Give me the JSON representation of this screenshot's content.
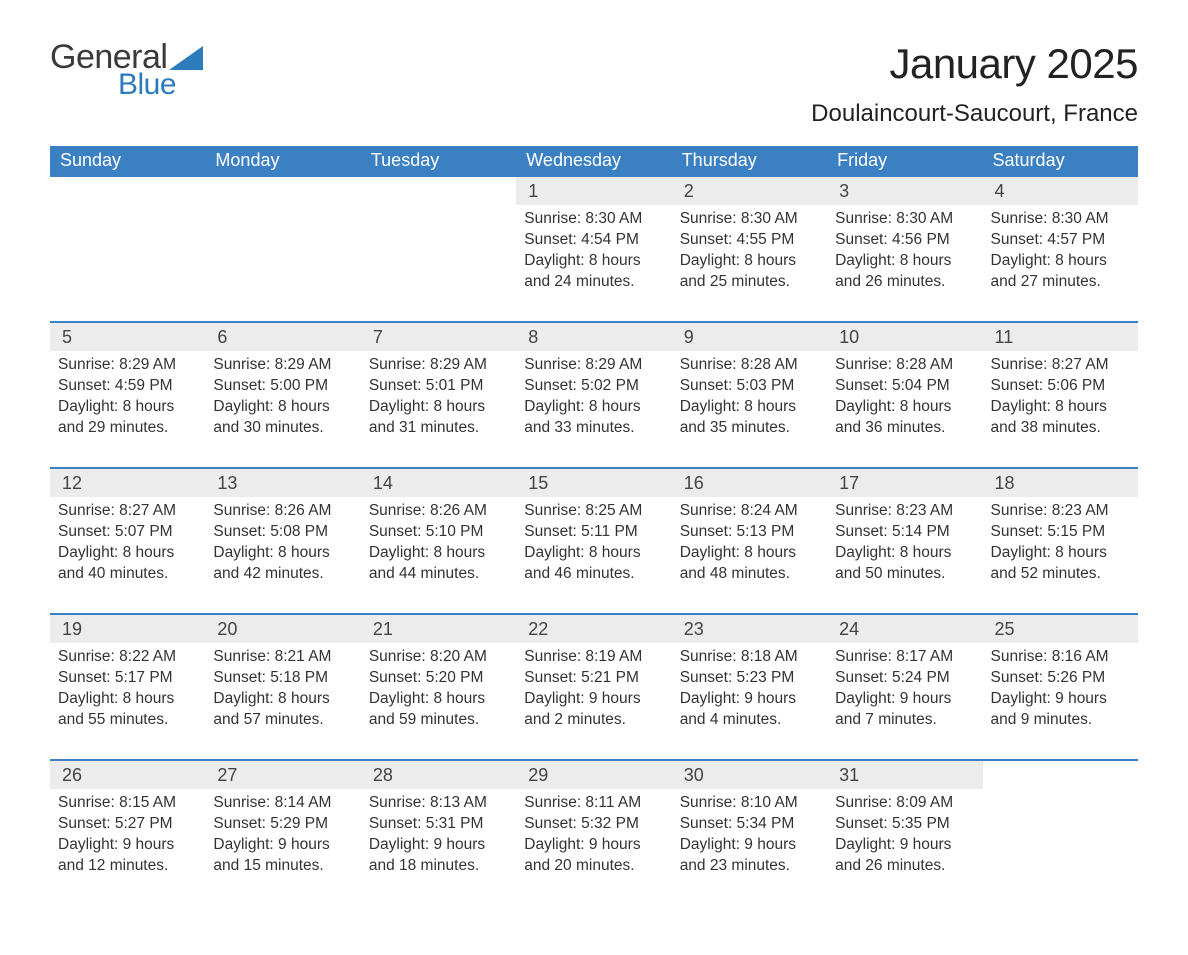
{
  "brand": {
    "part1": "General",
    "part2": "Blue",
    "color1": "#3a3a3a",
    "color2": "#2b7bbd"
  },
  "title": "January 2025",
  "location": "Doulaincourt-Saucourt, France",
  "colors": {
    "header_bg": "#3a80c3",
    "header_text": "#ffffff",
    "row_divider": "#3a80c3",
    "daynum_bg": "#ececec",
    "text": "#333333",
    "background": "#ffffff"
  },
  "fonts": {
    "title_size_pt": 32,
    "location_size_pt": 18,
    "header_size_pt": 14,
    "body_size_pt": 12
  },
  "layout": {
    "columns": 7,
    "rows": 5,
    "first_weekday_index": 3
  },
  "weekdays": [
    "Sunday",
    "Monday",
    "Tuesday",
    "Wednesday",
    "Thursday",
    "Friday",
    "Saturday"
  ],
  "weeks": [
    [
      null,
      null,
      null,
      {
        "day": "1",
        "sunrise": "Sunrise: 8:30 AM",
        "sunset": "Sunset: 4:54 PM",
        "daylight": "Daylight: 8 hours and 24 minutes."
      },
      {
        "day": "2",
        "sunrise": "Sunrise: 8:30 AM",
        "sunset": "Sunset: 4:55 PM",
        "daylight": "Daylight: 8 hours and 25 minutes."
      },
      {
        "day": "3",
        "sunrise": "Sunrise: 8:30 AM",
        "sunset": "Sunset: 4:56 PM",
        "daylight": "Daylight: 8 hours and 26 minutes."
      },
      {
        "day": "4",
        "sunrise": "Sunrise: 8:30 AM",
        "sunset": "Sunset: 4:57 PM",
        "daylight": "Daylight: 8 hours and 27 minutes."
      }
    ],
    [
      {
        "day": "5",
        "sunrise": "Sunrise: 8:29 AM",
        "sunset": "Sunset: 4:59 PM",
        "daylight": "Daylight: 8 hours and 29 minutes."
      },
      {
        "day": "6",
        "sunrise": "Sunrise: 8:29 AM",
        "sunset": "Sunset: 5:00 PM",
        "daylight": "Daylight: 8 hours and 30 minutes."
      },
      {
        "day": "7",
        "sunrise": "Sunrise: 8:29 AM",
        "sunset": "Sunset: 5:01 PM",
        "daylight": "Daylight: 8 hours and 31 minutes."
      },
      {
        "day": "8",
        "sunrise": "Sunrise: 8:29 AM",
        "sunset": "Sunset: 5:02 PM",
        "daylight": "Daylight: 8 hours and 33 minutes."
      },
      {
        "day": "9",
        "sunrise": "Sunrise: 8:28 AM",
        "sunset": "Sunset: 5:03 PM",
        "daylight": "Daylight: 8 hours and 35 minutes."
      },
      {
        "day": "10",
        "sunrise": "Sunrise: 8:28 AM",
        "sunset": "Sunset: 5:04 PM",
        "daylight": "Daylight: 8 hours and 36 minutes."
      },
      {
        "day": "11",
        "sunrise": "Sunrise: 8:27 AM",
        "sunset": "Sunset: 5:06 PM",
        "daylight": "Daylight: 8 hours and 38 minutes."
      }
    ],
    [
      {
        "day": "12",
        "sunrise": "Sunrise: 8:27 AM",
        "sunset": "Sunset: 5:07 PM",
        "daylight": "Daylight: 8 hours and 40 minutes."
      },
      {
        "day": "13",
        "sunrise": "Sunrise: 8:26 AM",
        "sunset": "Sunset: 5:08 PM",
        "daylight": "Daylight: 8 hours and 42 minutes."
      },
      {
        "day": "14",
        "sunrise": "Sunrise: 8:26 AM",
        "sunset": "Sunset: 5:10 PM",
        "daylight": "Daylight: 8 hours and 44 minutes."
      },
      {
        "day": "15",
        "sunrise": "Sunrise: 8:25 AM",
        "sunset": "Sunset: 5:11 PM",
        "daylight": "Daylight: 8 hours and 46 minutes."
      },
      {
        "day": "16",
        "sunrise": "Sunrise: 8:24 AM",
        "sunset": "Sunset: 5:13 PM",
        "daylight": "Daylight: 8 hours and 48 minutes."
      },
      {
        "day": "17",
        "sunrise": "Sunrise: 8:23 AM",
        "sunset": "Sunset: 5:14 PM",
        "daylight": "Daylight: 8 hours and 50 minutes."
      },
      {
        "day": "18",
        "sunrise": "Sunrise: 8:23 AM",
        "sunset": "Sunset: 5:15 PM",
        "daylight": "Daylight: 8 hours and 52 minutes."
      }
    ],
    [
      {
        "day": "19",
        "sunrise": "Sunrise: 8:22 AM",
        "sunset": "Sunset: 5:17 PM",
        "daylight": "Daylight: 8 hours and 55 minutes."
      },
      {
        "day": "20",
        "sunrise": "Sunrise: 8:21 AM",
        "sunset": "Sunset: 5:18 PM",
        "daylight": "Daylight: 8 hours and 57 minutes."
      },
      {
        "day": "21",
        "sunrise": "Sunrise: 8:20 AM",
        "sunset": "Sunset: 5:20 PM",
        "daylight": "Daylight: 8 hours and 59 minutes."
      },
      {
        "day": "22",
        "sunrise": "Sunrise: 8:19 AM",
        "sunset": "Sunset: 5:21 PM",
        "daylight": "Daylight: 9 hours and 2 minutes."
      },
      {
        "day": "23",
        "sunrise": "Sunrise: 8:18 AM",
        "sunset": "Sunset: 5:23 PM",
        "daylight": "Daylight: 9 hours and 4 minutes."
      },
      {
        "day": "24",
        "sunrise": "Sunrise: 8:17 AM",
        "sunset": "Sunset: 5:24 PM",
        "daylight": "Daylight: 9 hours and 7 minutes."
      },
      {
        "day": "25",
        "sunrise": "Sunrise: 8:16 AM",
        "sunset": "Sunset: 5:26 PM",
        "daylight": "Daylight: 9 hours and 9 minutes."
      }
    ],
    [
      {
        "day": "26",
        "sunrise": "Sunrise: 8:15 AM",
        "sunset": "Sunset: 5:27 PM",
        "daylight": "Daylight: 9 hours and 12 minutes."
      },
      {
        "day": "27",
        "sunrise": "Sunrise: 8:14 AM",
        "sunset": "Sunset: 5:29 PM",
        "daylight": "Daylight: 9 hours and 15 minutes."
      },
      {
        "day": "28",
        "sunrise": "Sunrise: 8:13 AM",
        "sunset": "Sunset: 5:31 PM",
        "daylight": "Daylight: 9 hours and 18 minutes."
      },
      {
        "day": "29",
        "sunrise": "Sunrise: 8:11 AM",
        "sunset": "Sunset: 5:32 PM",
        "daylight": "Daylight: 9 hours and 20 minutes."
      },
      {
        "day": "30",
        "sunrise": "Sunrise: 8:10 AM",
        "sunset": "Sunset: 5:34 PM",
        "daylight": "Daylight: 9 hours and 23 minutes."
      },
      {
        "day": "31",
        "sunrise": "Sunrise: 8:09 AM",
        "sunset": "Sunset: 5:35 PM",
        "daylight": "Daylight: 9 hours and 26 minutes."
      },
      null
    ]
  ]
}
